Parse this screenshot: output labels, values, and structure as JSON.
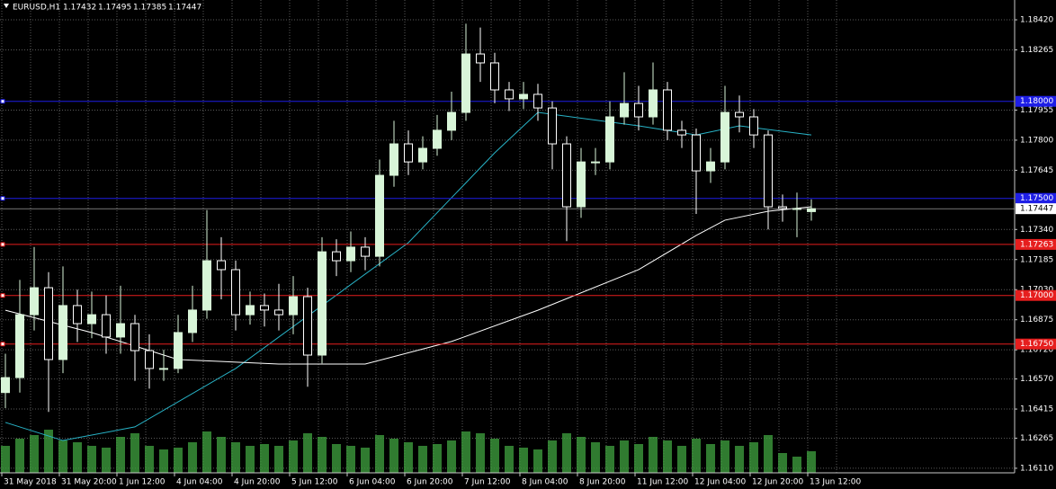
{
  "chart_data": {
    "type": "candlestick",
    "title": "EURUSD,H1",
    "last_bar": [
      1.17432,
      1.17495,
      1.17385,
      1.17447
    ],
    "x_labels": [
      "31 May 2018",
      "31 May 20:00",
      "1 Jun 12:00",
      "4 Jun 04:00",
      "4 Jun 20:00",
      "5 Jun 12:00",
      "6 Jun 04:00",
      "6 Jun 20:00",
      "7 Jun 12:00",
      "8 Jun 04:00",
      "8 Jun 20:00",
      "11 Jun 12:00",
      "12 Jun 04:00",
      "12 Jun 20:00",
      "13 Jun 12:00"
    ],
    "ylim": [
      1.16068,
      1.18522
    ],
    "yticks": [
      {
        "value": 1.1842,
        "label": "1.18420"
      },
      1.18265,
      1.17955,
      {
        "value": 1.178,
        "label": "1.17800"
      },
      1.17645,
      {
        "value": 1.1734,
        "label": "1.17340"
      },
      1.17185,
      {
        "value": 1.1703,
        "label": "1.17030"
      },
      1.16875,
      {
        "value": 1.1672,
        "label": "1.16720"
      },
      {
        "value": 1.1657,
        "label": "1.16570"
      },
      1.16415,
      1.16265,
      {
        "value": 1.1611,
        "label": "1.16110"
      }
    ],
    "grid": true,
    "up_color": "#d8f5d8",
    "down_color": "#ffffff",
    "volume_color": "#3c9a3c",
    "open": [
      1.165,
      1.16577,
      1.16901,
      1.1704,
      1.1667,
      1.16948,
      1.16855,
      1.16901,
      1.16786,
      1.16855,
      1.16716,
      1.16624,
      1.16624,
      1.16809,
      1.16925,
      1.17179,
      1.17133,
      1.16901,
      1.16948,
      1.16925,
      1.16901,
      1.16994,
      1.16693,
      1.17225,
      1.17179,
      1.17249,
      1.17202,
      1.17619,
      1.17781,
      1.17688,
      1.17758,
      1.17851,
      1.17943,
      1.18244,
      1.18198,
      1.18059,
      1.18013,
      1.18036,
      1.17966,
      1.17781,
      1.17457,
      1.17688,
      1.17688,
      1.1792,
      1.17989,
      1.1792,
      1.18059,
      1.17851,
      1.17827,
      1.17642,
      1.17688,
      1.17943,
      1.1792,
      1.17827,
      1.17457,
      1.17448,
      1.17432
    ],
    "high": [
      1.167,
      1.1708,
      1.1725,
      1.1712,
      1.1715,
      1.1703,
      1.1702,
      1.17,
      1.1705,
      1.169,
      1.168,
      1.1672,
      1.169,
      1.1705,
      1.1744,
      1.173,
      1.1718,
      1.1702,
      1.1701,
      1.1706,
      1.171,
      1.1704,
      1.173,
      1.1729,
      1.1733,
      1.173,
      1.177,
      1.179,
      1.1785,
      1.1782,
      1.1793,
      1.1805,
      1.184,
      1.1838,
      1.1825,
      1.181,
      1.181,
      1.1809,
      1.18,
      1.1782,
      1.1776,
      1.1776,
      1.18,
      1.1815,
      1.1808,
      1.182,
      1.181,
      1.179,
      1.1786,
      1.1776,
      1.1808,
      1.1803,
      1.1796,
      1.1785,
      1.1752,
      1.1753,
      1.17495
    ],
    "low": [
      1.1642,
      1.165,
      1.1682,
      1.164,
      1.166,
      1.1676,
      1.1678,
      1.167,
      1.167,
      1.1656,
      1.1652,
      1.1656,
      1.166,
      1.1676,
      1.1688,
      1.1698,
      1.1682,
      1.1685,
      1.1684,
      1.1682,
      1.168,
      1.1653,
      1.1665,
      1.171,
      1.1712,
      1.1713,
      1.1715,
      1.1756,
      1.1762,
      1.1765,
      1.1772,
      1.178,
      1.179,
      1.181,
      1.1799,
      1.1795,
      1.1796,
      1.179,
      1.1765,
      1.1728,
      1.174,
      1.1762,
      1.1765,
      1.1788,
      1.1785,
      1.1788,
      1.178,
      1.1776,
      1.1742,
      1.1758,
      1.1765,
      1.1784,
      1.1776,
      1.1734,
      1.1738,
      1.173,
      1.17385
    ],
    "close": [
      1.16577,
      1.16901,
      1.1704,
      1.1667,
      1.16948,
      1.16855,
      1.16901,
      1.16786,
      1.16855,
      1.16716,
      1.16624,
      1.16624,
      1.16809,
      1.16925,
      1.17179,
      1.17133,
      1.16901,
      1.16948,
      1.16925,
      1.16901,
      1.16994,
      1.16693,
      1.17225,
      1.17179,
      1.17249,
      1.17202,
      1.17619,
      1.17781,
      1.17688,
      1.17758,
      1.17851,
      1.17943,
      1.18244,
      1.18198,
      1.18059,
      1.18013,
      1.18036,
      1.17966,
      1.17781,
      1.17457,
      1.17688,
      1.17688,
      1.1792,
      1.17989,
      1.1792,
      1.18059,
      1.17851,
      1.17827,
      1.17642,
      1.17688,
      1.17943,
      1.1792,
      1.17827,
      1.17457,
      1.17448,
      1.17448,
      1.17447
    ],
    "volume": [
      30,
      38,
      42,
      48,
      36,
      34,
      30,
      28,
      40,
      44,
      30,
      26,
      28,
      34,
      46,
      40,
      34,
      30,
      32,
      30,
      36,
      44,
      40,
      32,
      30,
      28,
      42,
      38,
      34,
      30,
      32,
      36,
      46,
      44,
      38,
      30,
      28,
      26,
      36,
      44,
      40,
      34,
      30,
      36,
      32,
      40,
      36,
      30,
      38,
      32,
      36,
      30,
      34,
      42,
      22,
      18,
      24
    ],
    "indicators": [
      {
        "color": "#28b4c8",
        "x": [
          0,
          4,
          9,
          16,
          22,
          28,
          34,
          37,
          44,
          48,
          51,
          56
        ],
        "values": [
          1.16346,
          1.16253,
          1.16323,
          1.16624,
          1.16948,
          1.17272,
          1.17735,
          1.17943,
          1.17874,
          1.17827,
          1.17874,
          1.17827
        ]
      },
      {
        "color": "#ffffff",
        "x": [
          0,
          6,
          12,
          19,
          25,
          31,
          37,
          44,
          48,
          50,
          53,
          56
        ],
        "values": [
          1.16924,
          1.16809,
          1.1667,
          1.16647,
          1.16647,
          1.16763,
          1.16924,
          1.17133,
          1.17309,
          1.17388,
          1.17434,
          1.17457
        ]
      }
    ],
    "levels": [
      {
        "value": 1.18,
        "label": "1.18000",
        "color": "#1e1ee6"
      },
      {
        "value": 1.175,
        "label": "1.17500",
        "color": "#1e1ee6"
      },
      {
        "value": 1.17263,
        "color": "#e61e1e"
      },
      {
        "value": 1.17,
        "label": "1.17000",
        "color": "#e61e1e"
      },
      {
        "value": 1.1675,
        "label": "1.16750",
        "color": "#e61e1e"
      }
    ],
    "current_price": 1.17447
  }
}
